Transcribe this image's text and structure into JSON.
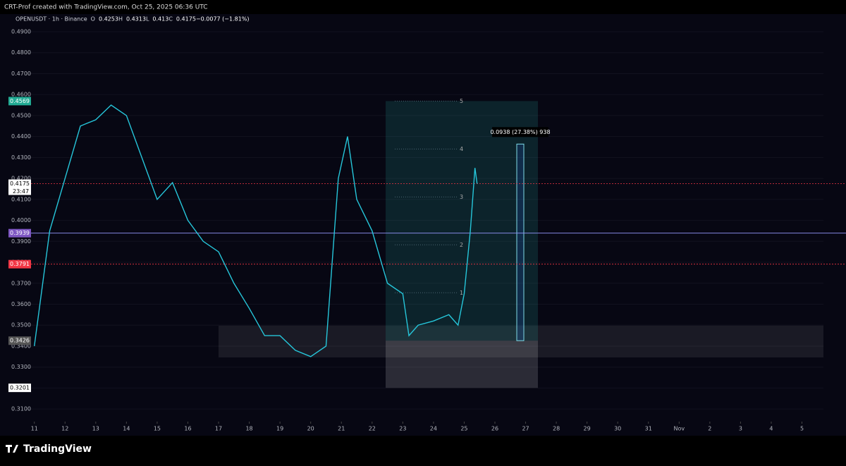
{
  "header": {
    "author_line": "CRT-Prof created with TradingView.com, Oct 25, 2025 06:36 UTC"
  },
  "legend": {
    "symbol": "OPENUSDT · 1h · Binance",
    "o_label": "O",
    "open": 0.4253,
    "h_label": "H",
    "high": 0.4313,
    "l_label": "L",
    "low": 0.413,
    "c_label": "C",
    "close": 0.4175,
    "change": "−0.0077 (−1.81%)"
  },
  "chart_data": {
    "type": "line",
    "x": [
      0,
      0.5,
      1,
      1.5,
      2,
      2.5,
      3,
      3.5,
      4,
      4.5,
      5,
      5.5,
      6,
      6.5,
      7,
      7.5,
      8,
      8.5,
      9,
      9.5,
      9.9,
      10.2,
      10.5,
      11,
      11.5,
      12,
      12.2,
      12.5,
      13,
      13.5,
      13.8,
      14,
      14.2,
      14.35,
      14.42
    ],
    "series": [
      {
        "name": "OPENUSDT",
        "color": "#26c6da",
        "values": [
          0.34,
          0.395,
          0.42,
          0.445,
          0.448,
          0.455,
          0.45,
          0.43,
          0.41,
          0.418,
          0.4,
          0.39,
          0.385,
          0.37,
          0.358,
          0.345,
          0.345,
          0.338,
          0.335,
          0.34,
          0.42,
          0.44,
          0.41,
          0.395,
          0.37,
          0.365,
          0.345,
          0.35,
          0.352,
          0.355,
          0.35,
          0.365,
          0.395,
          0.425,
          0.4175
        ]
      }
    ],
    "xlim": [
      -0.2,
      25.7
    ],
    "xticks": [
      {
        "value": 0,
        "label": "11"
      },
      {
        "value": 1,
        "label": "12"
      },
      {
        "value": 2,
        "label": "13"
      },
      {
        "value": 3,
        "label": "14"
      },
      {
        "value": 4,
        "label": "15"
      },
      {
        "value": 5,
        "label": "16"
      },
      {
        "value": 6,
        "label": "17"
      },
      {
        "value": 7,
        "label": "18"
      },
      {
        "value": 8,
        "label": "19"
      },
      {
        "value": 9,
        "label": "20"
      },
      {
        "value": 10,
        "label": "21"
      },
      {
        "value": 11,
        "label": "22"
      },
      {
        "value": 12,
        "label": "23"
      },
      {
        "value": 13,
        "label": "24"
      },
      {
        "value": 14,
        "label": "25"
      },
      {
        "value": 15,
        "label": "26"
      },
      {
        "value": 16,
        "label": "27"
      },
      {
        "value": 17,
        "label": "28"
      },
      {
        "value": 18,
        "label": "29"
      },
      {
        "value": 19,
        "label": "30"
      },
      {
        "value": 20,
        "label": "31"
      },
      {
        "value": 21,
        "label": "Nov"
      },
      {
        "value": 22,
        "label": "2"
      },
      {
        "value": 23,
        "label": "3"
      },
      {
        "value": 24,
        "label": "4"
      },
      {
        "value": 25,
        "label": "5"
      }
    ],
    "ylim": [
      0.304,
      0.4984
    ],
    "yticks": [
      {
        "value": 0.31,
        "label": "0.3100"
      },
      {
        "value": 0.32,
        "label": "0.3200"
      },
      {
        "value": 0.33,
        "label": "0.3300"
      },
      {
        "value": 0.34,
        "label": "0.3400"
      },
      {
        "value": 0.35,
        "label": "0.3500"
      },
      {
        "value": 0.36,
        "label": "0.3600"
      },
      {
        "value": 0.37,
        "label": "0.3700"
      },
      {
        "value": 0.38,
        "label": "0.3800"
      },
      {
        "value": 0.39,
        "label": "0.3900"
      },
      {
        "value": 0.4,
        "label": "0.4000"
      },
      {
        "value": 0.41,
        "label": "0.4100"
      },
      {
        "value": 0.42,
        "label": "0.4200"
      },
      {
        "value": 0.43,
        "label": "0.4300"
      },
      {
        "value": 0.44,
        "label": "0.4400"
      },
      {
        "value": 0.45,
        "label": "0.4500"
      },
      {
        "value": 0.46,
        "label": "0.4600"
      },
      {
        "value": 0.47,
        "label": "0.4700"
      },
      {
        "value": 0.48,
        "label": "0.4800"
      },
      {
        "value": 0.49,
        "label": "0.4900"
      }
    ],
    "price_labels": [
      {
        "value": 0.4569,
        "color": "#22ab94"
      },
      {
        "value": 0.4175,
        "color": "#ffffff",
        "time": "23:47"
      },
      {
        "value": 0.3939,
        "color": "#7e57c2"
      },
      {
        "value": 0.3791,
        "color": "#f23645"
      },
      {
        "value": 0.3426,
        "color": "#555555"
      },
      {
        "value": 0.3201,
        "color": "#ffffff"
      }
    ],
    "levels": [
      "1",
      "2",
      "3",
      "4",
      "5"
    ],
    "measure": {
      "value": 0.0938,
      "label": "0.0938 (27.38%) 938"
    }
  },
  "footer": {
    "brand": "TradingView"
  }
}
